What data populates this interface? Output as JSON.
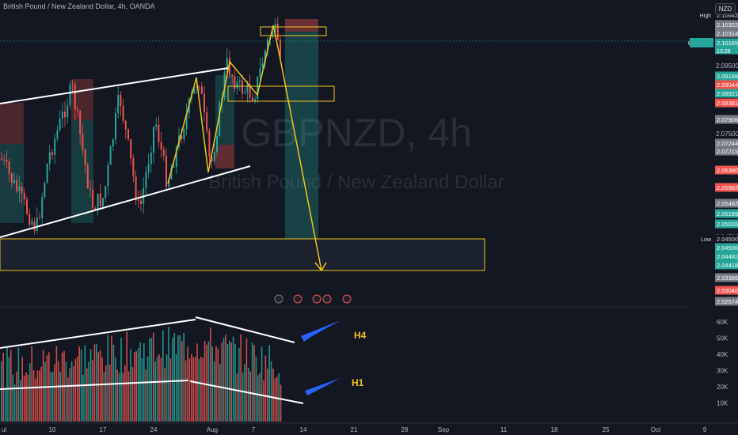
{
  "header": {
    "title": "British Pound / New Zealand Dollar, 4h, OANDA"
  },
  "currency_button": "NZD",
  "watermark": {
    "symbol": "GBPNZD, 4h",
    "name": "British Pound / New Zealand Dollar"
  },
  "price_axis": {
    "ticks": [
      "2.09500",
      "2.07500",
      "2.04500"
    ],
    "labels": [
      {
        "text": "2.10642",
        "tag": "High",
        "color": "#131722",
        "fg": "#d1d4dc"
      },
      {
        "text": "2.10322",
        "color": "#787b86"
      },
      {
        "text": "2.10314",
        "color": "#787b86"
      },
      {
        "text": "2.10165",
        "tag": "GBPNZD",
        "sub": "13:28",
        "color": "#26a69a"
      },
      {
        "text": "2.09188",
        "color": "#26a69a"
      },
      {
        "text": "2.09044",
        "color": "#ef5350"
      },
      {
        "text": "2.08921",
        "color": "#26a69a"
      },
      {
        "text": "2.08381",
        "color": "#ef5350"
      },
      {
        "text": "2.07906",
        "color": "#787b86"
      },
      {
        "text": "2.07244",
        "color": "#787b86"
      },
      {
        "text": "2.07215",
        "color": "#787b86"
      },
      {
        "text": "2.06380",
        "color": "#ef5350"
      },
      {
        "text": "2.05982",
        "color": "#ef5350"
      },
      {
        "text": "2.05482",
        "color": "#787b86"
      },
      {
        "text": "2.05199",
        "color": "#26a69a"
      },
      {
        "text": "2.05026",
        "color": "#26a69a"
      },
      {
        "text": "2.04500",
        "tag": "Low",
        "color": "#131722",
        "fg": "#d1d4dc"
      },
      {
        "text": "2.04500",
        "color": "#26a69a"
      },
      {
        "text": "2.04482",
        "color": "#26a69a"
      },
      {
        "text": "2.04418",
        "color": "#26a69a"
      },
      {
        "text": "2.03386",
        "color": "#787b86"
      },
      {
        "text": "2.03040",
        "color": "#ef5350"
      },
      {
        "text": "2.02574",
        "color": "#787b86"
      }
    ]
  },
  "volume_axis": [
    "60K",
    "50K",
    "40K",
    "30K",
    "20K",
    "10K"
  ],
  "time_axis": [
    "ul",
    "10",
    "17",
    "24",
    "Aug",
    "7",
    "14",
    "21",
    "28",
    "Sep",
    "11",
    "18",
    "25",
    "Oct",
    "9"
  ],
  "annotations": {
    "h4": "H4",
    "h1": "H1"
  },
  "colors": {
    "bg": "#131722",
    "up": "#26a69a",
    "down": "#ef5350",
    "yellow": "#f0c419",
    "white": "#ffffff",
    "arrow": "#2962ff"
  }
}
